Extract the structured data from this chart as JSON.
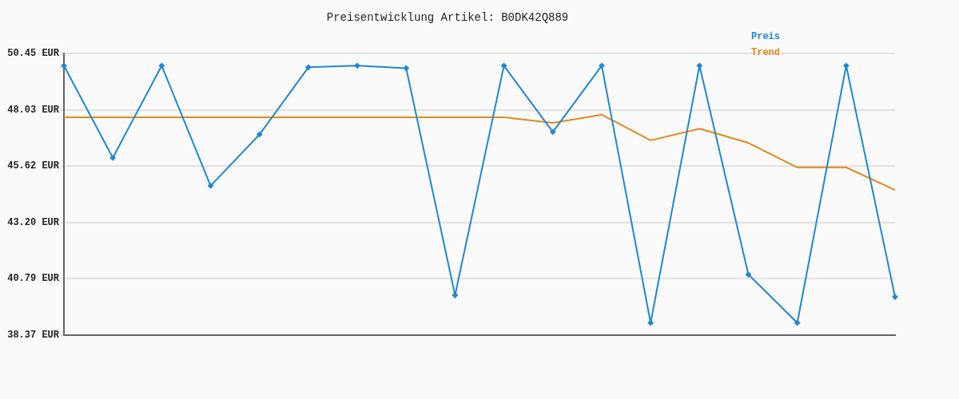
{
  "chart_data": {
    "type": "line",
    "title": "Preisentwicklung Artikel: B0DK42Q889",
    "categories": [
      null,
      null,
      null,
      null,
      null,
      null,
      null,
      null,
      null,
      null,
      null,
      null,
      null,
      null,
      null,
      null,
      null,
      null
    ],
    "series": [
      {
        "name": "Preis",
        "color": "#1f88d4",
        "marker": "diamond",
        "values": [
          49.92,
          45.97,
          49.92,
          44.77,
          46.97,
          49.85,
          49.92,
          49.81,
          40.08,
          49.92,
          47.08,
          49.92,
          38.9,
          49.92,
          40.97,
          38.9,
          49.92,
          40.01
        ]
      },
      {
        "name": "Trend",
        "color": "#e08a1e",
        "marker": "none",
        "values": [
          47.71,
          47.71,
          47.71,
          47.71,
          47.71,
          47.71,
          47.71,
          47.71,
          47.71,
          47.71,
          47.47,
          47.82,
          46.72,
          47.22,
          46.61,
          45.56,
          45.56,
          44.59
        ]
      }
    ],
    "ylim": [
      38.37,
      50.45
    ],
    "yticks": [
      {
        "value": 38.37,
        "label": "38.37 EUR"
      },
      {
        "value": 40.79,
        "label": "40.79 EUR"
      },
      {
        "value": 43.2,
        "label": "43.20 EUR"
      },
      {
        "value": 45.62,
        "label": "45.62 EUR"
      },
      {
        "value": 48.03,
        "label": "48.03 EUR"
      },
      {
        "value": 50.45,
        "label": "50.45 EUR"
      }
    ],
    "grid": "y",
    "legend": "top right",
    "tick_labels": "y",
    "line_style": "solid"
  }
}
